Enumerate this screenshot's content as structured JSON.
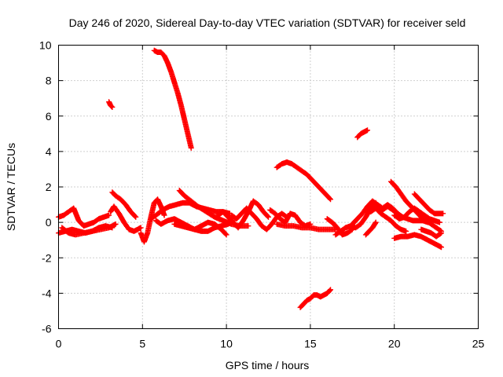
{
  "chart_data": {
    "type": "scatter",
    "title": "Day 246 of 2020, Sidereal Day-to-day VTEC variation (SDTVAR) for receiver seld",
    "xlabel": "GPS time / hours",
    "ylabel": "SDTVAR / TECUs",
    "xlim": [
      0,
      25
    ],
    "ylim": [
      -6,
      10
    ],
    "xticks": [
      0,
      5,
      10,
      15,
      20,
      25
    ],
    "yticks": [
      -6,
      -4,
      -2,
      0,
      2,
      4,
      6,
      8,
      10
    ],
    "grid": true,
    "marker": "plus",
    "colors": {
      "series": "#ff0000",
      "axis": "#000000",
      "grid": "#a0a0a0"
    },
    "series": [
      {
        "name": "arc-1",
        "x": [
          0.0,
          0.3,
          0.6,
          0.9,
          1.2,
          1.5,
          1.8,
          2.1,
          2.4,
          2.7,
          3.0
        ],
        "y": [
          0.3,
          0.4,
          0.6,
          0.8,
          0.1,
          -0.2,
          -0.1,
          0.0,
          0.2,
          0.3,
          0.4
        ]
      },
      {
        "name": "arc-2",
        "x": [
          0.0,
          0.4,
          0.8,
          1.2,
          1.6,
          2.0,
          2.4,
          2.8,
          3.2
        ],
        "y": [
          -0.6,
          -0.5,
          -0.4,
          -0.5,
          -0.6,
          -0.5,
          -0.3,
          -0.2,
          -0.3
        ]
      },
      {
        "name": "arc-3",
        "x": [
          0.2,
          0.6,
          1.0,
          1.5,
          2.0,
          2.5,
          3.0,
          3.4
        ],
        "y": [
          -0.3,
          -0.6,
          -0.7,
          -0.6,
          -0.5,
          -0.4,
          -0.3,
          -0.1
        ]
      },
      {
        "name": "arc-4",
        "x": [
          3.0,
          3.1,
          3.2
        ],
        "y": [
          6.8,
          6.6,
          6.5
        ]
      },
      {
        "name": "arc-5",
        "x": [
          3.2,
          3.4,
          3.7,
          4.0,
          4.3,
          4.6
        ],
        "y": [
          1.7,
          1.5,
          1.3,
          1.0,
          0.6,
          0.3
        ]
      },
      {
        "name": "arc-6",
        "x": [
          3.1,
          3.3,
          3.6,
          3.9,
          4.2,
          4.5,
          4.9
        ],
        "y": [
          0.6,
          0.9,
          0.5,
          0.0,
          -0.4,
          -0.5,
          -0.3
        ]
      },
      {
        "name": "arc-7",
        "x": [
          4.9,
          5.1,
          5.3,
          5.5,
          5.7,
          5.9,
          6.1,
          6.3
        ],
        "y": [
          -0.6,
          -1.1,
          -0.6,
          0.3,
          1.1,
          1.3,
          0.9,
          0.4
        ]
      },
      {
        "name": "arc-8",
        "x": [
          5.5,
          5.8,
          6.2,
          6.6,
          7.0,
          7.4,
          7.8,
          8.2,
          8.6,
          9.0,
          9.4,
          9.8,
          10.2
        ],
        "y": [
          0.2,
          0.4,
          0.7,
          0.9,
          1.0,
          1.1,
          1.1,
          0.9,
          0.8,
          0.7,
          0.6,
          0.6,
          0.5
        ]
      },
      {
        "name": "arc-9",
        "x": [
          5.8,
          6.1,
          6.5,
          6.9,
          7.3,
          7.7,
          8.1,
          8.5,
          8.9,
          9.3,
          9.7,
          10.1,
          10.4
        ],
        "y": [
          0.1,
          -0.1,
          0.1,
          0.2,
          0.0,
          -0.2,
          -0.4,
          -0.5,
          -0.5,
          -0.3,
          -0.2,
          -0.1,
          0.1
        ]
      },
      {
        "name": "arc-10",
        "x": [
          5.7,
          5.9,
          6.1,
          6.3,
          6.5,
          6.7,
          6.9,
          7.1,
          7.3,
          7.5,
          7.7,
          7.9
        ],
        "y": [
          9.7,
          9.6,
          9.6,
          9.4,
          9.0,
          8.5,
          7.9,
          7.3,
          6.6,
          5.8,
          5.0,
          4.2
        ]
      },
      {
        "name": "arc-11",
        "x": [
          7.2,
          7.5,
          7.9,
          8.3,
          8.8,
          9.3,
          9.8,
          10.3,
          10.8,
          11.3
        ],
        "y": [
          1.8,
          1.5,
          1.2,
          0.9,
          0.6,
          0.3,
          0.1,
          -0.1,
          -0.2,
          -0.2
        ]
      },
      {
        "name": "arc-12",
        "x": [
          6.9,
          7.3,
          7.7,
          8.1,
          8.5,
          8.9,
          9.3,
          9.7,
          10.0
        ],
        "y": [
          -0.1,
          -0.2,
          -0.3,
          -0.4,
          -0.2,
          0.0,
          -0.1,
          -0.4,
          -0.7
        ]
      },
      {
        "name": "arc-13",
        "x": [
          9.5,
          9.8,
          10.1,
          10.4,
          10.7,
          11.0,
          11.3,
          11.6,
          11.9,
          12.2,
          12.5
        ],
        "y": [
          0.4,
          0.6,
          0.3,
          0.0,
          -0.3,
          0.1,
          0.6,
          1.2,
          1.0,
          0.6,
          0.3
        ]
      },
      {
        "name": "arc-14",
        "x": [
          10.3,
          10.6,
          10.9,
          11.2,
          11.5,
          11.8,
          12.1,
          12.4,
          12.7,
          13.0,
          13.3,
          13.6
        ],
        "y": [
          0.4,
          0.2,
          0.5,
          0.8,
          0.5,
          0.2,
          -0.2,
          -0.4,
          -0.1,
          0.3,
          0.5,
          0.3
        ]
      },
      {
        "name": "arc-15",
        "x": [
          12.6,
          12.9,
          13.2,
          13.5,
          13.8,
          14.1,
          14.4,
          14.7,
          15.0
        ],
        "y": [
          0.7,
          0.5,
          0.2,
          0.0,
          0.5,
          0.4,
          0.0,
          -0.2,
          -0.1
        ]
      },
      {
        "name": "arc-16",
        "x": [
          13.0,
          13.3,
          13.6,
          13.9,
          14.2,
          14.5,
          14.8,
          15.1,
          15.4,
          15.7,
          16.0,
          16.2
        ],
        "y": [
          3.1,
          3.3,
          3.4,
          3.3,
          3.1,
          2.9,
          2.7,
          2.4,
          2.1,
          1.8,
          1.5,
          1.3
        ]
      },
      {
        "name": "arc-17",
        "x": [
          13.0,
          13.5,
          14.0,
          14.5,
          15.0,
          15.5,
          16.0,
          16.5
        ],
        "y": [
          -0.1,
          -0.2,
          -0.2,
          -0.3,
          -0.3,
          -0.4,
          -0.4,
          -0.4
        ]
      },
      {
        "name": "arc-18",
        "x": [
          14.4,
          14.6,
          14.8,
          15.0,
          15.2,
          15.4,
          15.6,
          15.8,
          16.0,
          16.2
        ],
        "y": [
          -4.8,
          -4.6,
          -4.4,
          -4.3,
          -4.1,
          -4.1,
          -4.2,
          -4.1,
          -4.0,
          -3.8
        ]
      },
      {
        "name": "arc-19",
        "x": [
          16.0,
          16.3,
          16.6,
          16.9,
          17.2,
          17.5
        ],
        "y": [
          0.2,
          0.0,
          -0.3,
          -0.7,
          -0.6,
          -0.4
        ]
      },
      {
        "name": "arc-20",
        "x": [
          16.5,
          16.8,
          17.1,
          17.4,
          17.7,
          18.0,
          18.3,
          18.6,
          18.9
        ],
        "y": [
          -0.7,
          -0.5,
          -0.3,
          -0.2,
          -0.3,
          -0.1,
          0.3,
          0.8,
          1.1
        ]
      },
      {
        "name": "arc-21",
        "x": [
          17.5,
          17.8,
          18.1,
          18.4,
          18.7,
          19.0,
          19.3,
          19.6,
          19.9,
          20.2
        ],
        "y": [
          -0.1,
          0.2,
          0.5,
          0.9,
          1.2,
          1.0,
          0.8,
          1.0,
          0.8,
          0.5
        ]
      },
      {
        "name": "arc-22",
        "x": [
          17.8,
          18.0,
          18.2,
          18.4
        ],
        "y": [
          4.8,
          5.0,
          5.1,
          5.2
        ]
      },
      {
        "name": "arc-23",
        "x": [
          18.3,
          18.5,
          18.7,
          18.9
        ],
        "y": [
          -0.7,
          -0.5,
          -0.3,
          0.0
        ]
      },
      {
        "name": "arc-24",
        "x": [
          18.6,
          18.9,
          19.2,
          19.5,
          19.8,
          20.1,
          20.4,
          20.7
        ],
        "y": [
          0.6,
          0.8,
          0.5,
          0.3,
          0.1,
          -0.2,
          -0.4,
          -0.5
        ]
      },
      {
        "name": "arc-25",
        "x": [
          18.7,
          19.0,
          19.3,
          19.6,
          19.9,
          20.2,
          20.5,
          20.8,
          21.1,
          21.4,
          21.7,
          22.0
        ],
        "y": [
          1.0,
          0.9,
          0.7,
          0.9,
          0.7,
          0.5,
          0.3,
          0.2,
          0.1,
          0.1,
          0.1,
          0.0
        ]
      },
      {
        "name": "arc-26",
        "x": [
          19.8,
          20.1,
          20.4,
          20.7,
          21.0,
          21.3,
          21.6,
          21.9,
          22.2,
          22.5,
          22.8
        ],
        "y": [
          2.3,
          2.0,
          1.6,
          1.2,
          0.9,
          0.6,
          0.3,
          0.1,
          -0.1,
          -0.3,
          -0.5
        ]
      },
      {
        "name": "arc-27",
        "x": [
          20.0,
          20.3,
          20.6,
          20.9,
          21.2,
          21.5,
          21.8,
          22.1,
          22.4,
          22.7
        ],
        "y": [
          0.4,
          0.2,
          0.3,
          0.6,
          0.8,
          0.6,
          0.4,
          0.2,
          0.1,
          0.0
        ]
      },
      {
        "name": "arc-28",
        "x": [
          20.0,
          20.4,
          20.8,
          21.2,
          21.6,
          22.0,
          22.4,
          22.8
        ],
        "y": [
          -0.9,
          -0.8,
          -0.8,
          -0.7,
          -0.8,
          -1.0,
          -1.2,
          -1.4
        ]
      },
      {
        "name": "arc-29",
        "x": [
          21.2,
          21.5,
          21.8,
          22.1,
          22.4,
          22.7,
          22.9
        ],
        "y": [
          1.6,
          1.3,
          1.0,
          0.7,
          0.5,
          0.5,
          0.5
        ]
      },
      {
        "name": "arc-30",
        "x": [
          21.6,
          21.9,
          22.2,
          22.5,
          22.8
        ],
        "y": [
          -0.4,
          -0.5,
          -0.6,
          -0.8,
          -0.6
        ]
      }
    ]
  }
}
